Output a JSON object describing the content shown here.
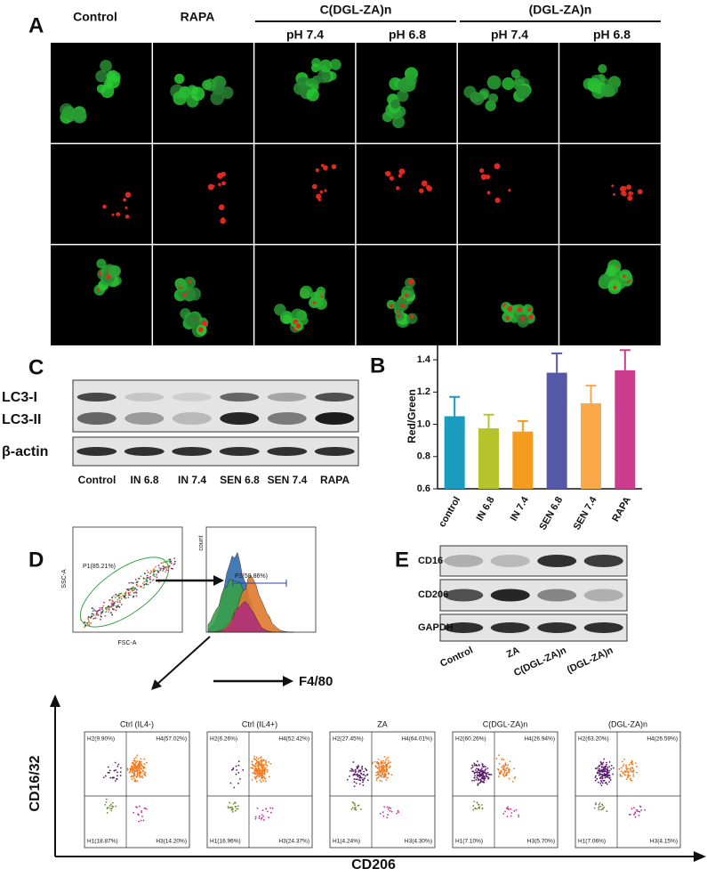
{
  "panel_a": {
    "label": "A",
    "columns": [
      "Control",
      "RAPA"
    ],
    "groups": [
      {
        "name": "C(DGL-ZA)n",
        "conditions": [
          "pH 7.4",
          "pH 6.8"
        ]
      },
      {
        "name": "(DGL-ZA)n",
        "conditions": [
          "pH 7.4",
          "pH 6.8"
        ]
      }
    ]
  },
  "panel_c": {
    "label": "C",
    "bands": [
      "LC3-I",
      "LC3-II",
      "β-actin"
    ],
    "lanes": [
      "Control",
      "IN 6.8",
      "IN 7.4",
      "SEN 6.8",
      "SEN 7.4",
      "RAPA"
    ]
  },
  "chart_data": {
    "type": "bar",
    "label": "B",
    "y_label": "Red/Green",
    "categories": [
      "control",
      "IN 6.8",
      "IN 7.4",
      "SEN 6.8",
      "SEN 7.4",
      "RAPA"
    ],
    "values": [
      1.05,
      0.975,
      0.955,
      1.32,
      1.13,
      1.335
    ],
    "errors": [
      0.12,
      0.085,
      0.065,
      0.12,
      0.11,
      0.125
    ],
    "colors": [
      "#1a9bbf",
      "#b5c42a",
      "#f39c1f",
      "#5558a8",
      "#f9a94a",
      "#cc3d8f"
    ],
    "ylim": [
      0.6,
      1.5
    ],
    "yticks": [
      0.6,
      0.8,
      {
        "value": 1,
        "label": "1.0"
      },
      1.2,
      1.4
    ]
  },
  "panel_d": {
    "label": "D",
    "gate_plot": {
      "y_label": "SSC-A",
      "x_label": "FSC-A",
      "gate": "P1(85.21%)"
    },
    "histogram": {
      "y_label": "count",
      "gate": "P2(58.86%)",
      "x_label": "F4/80"
    },
    "y_label": "CD16/32",
    "x_label": "CD206",
    "plots": [
      {
        "title": "Ctrl (IL4-)",
        "quadrants": [
          "H2(9.90%)",
          "H4(57.02%)",
          "H1(18.87%)",
          "H3(14.20%)"
        ]
      },
      {
        "title": "Ctrl (IL4+)",
        "quadrants": [
          "H2(6.26%)",
          "H4(52.42%)",
          "H1(16.96%)",
          "H3(24.37%)"
        ]
      },
      {
        "title": "ZA",
        "quadrants": [
          "H2(27.45%)",
          "H4(64.01%)",
          "H1(4.24%)",
          "H3(4.30%)"
        ]
      },
      {
        "title": "C(DGL-ZA)n",
        "quadrants": [
          "H2(60.26%)",
          "H4(26.94%)",
          "H1(7.10%)",
          "H3(5.70%)"
        ]
      },
      {
        "title": "(DGL-ZA)n",
        "quadrants": [
          "H2(63.20%)",
          "H4(26.59%)",
          "H1(7.06%)",
          "H3(4.15%)"
        ]
      }
    ]
  },
  "panel_e": {
    "label": "E",
    "bands": [
      "CD16",
      "CD206",
      "GAPDH"
    ],
    "lanes": [
      "Control",
      "ZA",
      "C(DGL-ZA)n",
      "(DGL-ZA)n"
    ]
  }
}
